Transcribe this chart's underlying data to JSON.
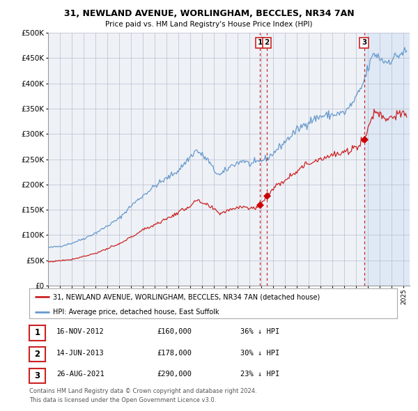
{
  "title": "31, NEWLAND AVENUE, WORLINGHAM, BECCLES, NR34 7AN",
  "subtitle": "Price paid vs. HM Land Registry's House Price Index (HPI)",
  "legend_line1": "31, NEWLAND AVENUE, WORLINGHAM, BECCLES, NR34 7AN (detached house)",
  "legend_line2": "HPI: Average price, detached house, East Suffolk",
  "transactions": [
    {
      "num": 1,
      "date_x": 2012.877,
      "price": 160000,
      "label": "16-NOV-2012",
      "amount": "£160,000",
      "pct": "36% ↓ HPI"
    },
    {
      "num": 2,
      "date_x": 2013.452,
      "price": 178000,
      "label": "14-JUN-2013",
      "amount": "£178,000",
      "pct": "30% ↓ HPI"
    },
    {
      "num": 3,
      "date_x": 2021.651,
      "price": 290000,
      "label": "26-AUG-2021",
      "amount": "£290,000",
      "pct": "23% ↓ HPI"
    }
  ],
  "footer1": "Contains HM Land Registry data © Crown copyright and database right 2024.",
  "footer2": "This data is licensed under the Open Government Licence v3.0.",
  "hpi_color": "#6699cc",
  "price_color": "#cc2222",
  "marker_color": "#cc0000",
  "dashed_line_color": "#cc2222",
  "background_color": "#ffffff",
  "plot_bg_color": "#eef2f7",
  "shade_color": "#dce8f5",
  "grid_color": "#bbbbcc",
  "xmin": 1995.0,
  "xmax": 2025.5,
  "ymin": 0,
  "ymax": 500000,
  "yticks": [
    0,
    50000,
    100000,
    150000,
    200000,
    250000,
    300000,
    350000,
    400000,
    450000,
    500000
  ],
  "hpi_keypoints_x": [
    1995.0,
    1996.0,
    1997.0,
    1998.0,
    1999.0,
    2000.0,
    2001.0,
    2002.0,
    2003.0,
    2004.0,
    2005.0,
    2006.0,
    2007.0,
    2007.5,
    2008.0,
    2008.5,
    2009.0,
    2009.5,
    2010.0,
    2010.5,
    2011.0,
    2011.5,
    2012.0,
    2012.5,
    2013.0,
    2013.5,
    2014.0,
    2015.0,
    2016.0,
    2017.0,
    2018.0,
    2019.0,
    2019.5,
    2020.0,
    2020.5,
    2021.0,
    2021.5,
    2022.0,
    2022.5,
    2023.0,
    2023.5,
    2024.0,
    2024.5,
    2025.0
  ],
  "hpi_keypoints_y": [
    75000,
    78000,
    84000,
    93000,
    104000,
    118000,
    133000,
    158000,
    178000,
    197000,
    212000,
    228000,
    255000,
    268000,
    258000,
    248000,
    228000,
    218000,
    228000,
    238000,
    243000,
    248000,
    240000,
    242000,
    248000,
    252000,
    262000,
    285000,
    308000,
    325000,
    335000,
    338000,
    340000,
    342000,
    355000,
    372000,
    395000,
    430000,
    460000,
    450000,
    442000,
    448000,
    455000,
    462000
  ],
  "prop_keypoints_x": [
    1995.0,
    1997.0,
    1999.0,
    2001.0,
    2003.0,
    2005.0,
    2007.0,
    2007.5,
    2008.5,
    2009.5,
    2010.5,
    2011.0,
    2011.5,
    2012.0,
    2012.5,
    2012.877,
    2013.0,
    2013.452,
    2014.0,
    2015.0,
    2016.0,
    2017.0,
    2018.0,
    2019.0,
    2020.0,
    2020.5,
    2021.0,
    2021.651,
    2022.0,
    2022.5,
    2023.0,
    2023.5,
    2024.0,
    2024.5
  ],
  "prop_keypoints_y": [
    47000,
    52000,
    64000,
    82000,
    110000,
    132000,
    158000,
    168000,
    158000,
    143000,
    152000,
    155000,
    158000,
    152000,
    154000,
    160000,
    163000,
    178000,
    192000,
    210000,
    228000,
    242000,
    252000,
    258000,
    262000,
    268000,
    275000,
    290000,
    310000,
    345000,
    340000,
    330000,
    335000,
    338000
  ]
}
